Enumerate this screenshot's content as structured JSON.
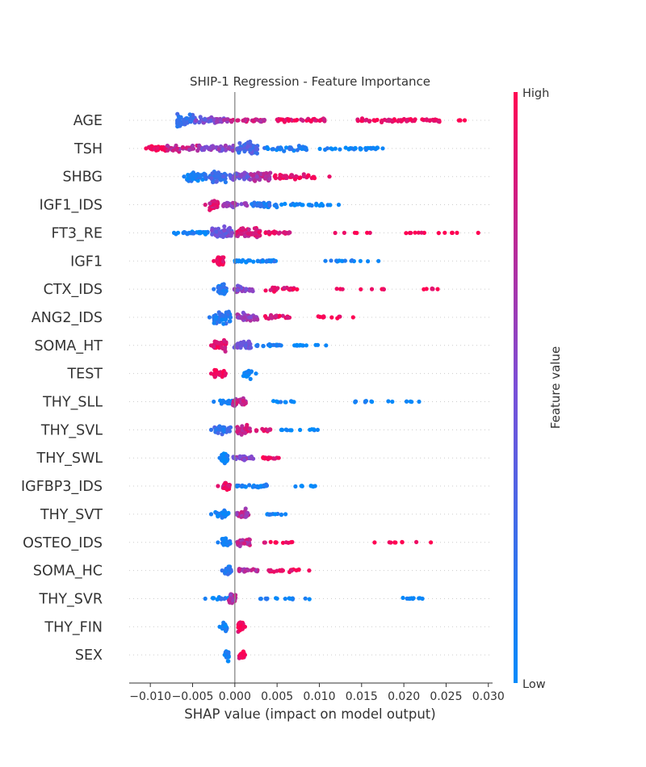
{
  "chart_data": {
    "type": "scatter",
    "subtype": "shap-beeswarm",
    "title": "SHIP-1 Regression - Feature Importance",
    "xlabel": "SHAP value (impact on model output)",
    "ylabel": "",
    "xlim": [
      -0.0125,
      0.0305
    ],
    "xticks": [
      -0.01,
      -0.005,
      0.0,
      0.005,
      0.01,
      0.015,
      0.02,
      0.025,
      0.03
    ],
    "xtick_labels": [
      "−0.010",
      "−0.005",
      "0.000",
      "0.005",
      "0.010",
      "0.015",
      "0.020",
      "0.025",
      "0.030"
    ],
    "zero_line": 0.0,
    "grid": "dotted horizontal guides per feature",
    "colorbar": {
      "label": "Feature value",
      "high_label": "High",
      "low_label": "Low",
      "colors": [
        "#008bfb",
        "#7a4fd8",
        "#ff0052"
      ],
      "placement": "right"
    },
    "features": [
      {
        "name": "AGE",
        "min": -0.0068,
        "max": 0.0272,
        "clusters": [
          {
            "x": -0.006,
            "w": 0.0013,
            "h": 0.95,
            "c": 0.22,
            "n": 60
          },
          {
            "x": -0.0035,
            "w": 0.0012,
            "h": 0.5,
            "c": 0.45,
            "n": 30
          },
          {
            "x": -0.0015,
            "w": 0.001,
            "h": 0.4,
            "c": 0.6,
            "n": 20
          },
          {
            "x": 0.0015,
            "w": 0.002,
            "h": 0.25,
            "c": 0.8,
            "n": 30
          },
          {
            "x": 0.008,
            "w": 0.003,
            "h": 0.25,
            "c": 0.92,
            "n": 40
          },
          {
            "x": 0.0195,
            "w": 0.005,
            "h": 0.25,
            "c": 0.95,
            "n": 60
          },
          {
            "x": 0.0265,
            "w": 0.0006,
            "h": 0.05,
            "c": 1.0,
            "n": 3
          },
          {
            "x": 0.0163,
            "w": 0.0003,
            "h": 0.05,
            "c": 1.0,
            "n": 2
          }
        ]
      },
      {
        "name": "TSH",
        "min": -0.0105,
        "max": 0.0175,
        "clusters": [
          {
            "x": -0.009,
            "w": 0.0012,
            "h": 0.45,
            "c": 0.97,
            "n": 40
          },
          {
            "x": -0.006,
            "w": 0.002,
            "h": 0.45,
            "c": 0.75,
            "n": 40
          },
          {
            "x": -0.002,
            "w": 0.002,
            "h": 0.45,
            "c": 0.55,
            "n": 40
          },
          {
            "x": 0.0015,
            "w": 0.0012,
            "h": 0.95,
            "c": 0.3,
            "n": 55
          },
          {
            "x": 0.006,
            "w": 0.0025,
            "h": 0.35,
            "c": 0.12,
            "n": 35
          },
          {
            "x": 0.0135,
            "w": 0.0035,
            "h": 0.2,
            "c": 0.05,
            "n": 35
          }
        ]
      },
      {
        "name": "SHBG",
        "min": -0.006,
        "max": 0.0112,
        "clusters": [
          {
            "x": -0.0045,
            "w": 0.0012,
            "h": 0.7,
            "c": 0.1,
            "n": 45
          },
          {
            "x": -0.002,
            "w": 0.001,
            "h": 0.85,
            "c": 0.25,
            "n": 45
          },
          {
            "x": 0.0005,
            "w": 0.0012,
            "h": 0.6,
            "c": 0.45,
            "n": 45
          },
          {
            "x": 0.003,
            "w": 0.0012,
            "h": 0.7,
            "c": 0.7,
            "n": 45
          },
          {
            "x": 0.007,
            "w": 0.0025,
            "h": 0.35,
            "c": 0.92,
            "n": 35
          }
        ]
      },
      {
        "name": "IGF1_IDS",
        "min": -0.0035,
        "max": 0.0123,
        "clusters": [
          {
            "x": -0.0025,
            "w": 0.0005,
            "h": 0.75,
            "c": 0.85,
            "n": 35
          },
          {
            "x": 0.0,
            "w": 0.0015,
            "h": 0.35,
            "c": 0.6,
            "n": 30
          },
          {
            "x": 0.0035,
            "w": 0.0015,
            "h": 0.35,
            "c": 0.15,
            "n": 30
          },
          {
            "x": 0.0085,
            "w": 0.003,
            "h": 0.15,
            "c": 0.04,
            "n": 25
          }
        ]
      },
      {
        "name": "FT3_RE",
        "min": -0.0072,
        "max": 0.0288,
        "clusters": [
          {
            "x": -0.005,
            "w": 0.002,
            "h": 0.2,
            "c": 0.05,
            "n": 30
          },
          {
            "x": -0.0015,
            "w": 0.0012,
            "h": 0.85,
            "c": 0.45,
            "n": 60
          },
          {
            "x": 0.0015,
            "w": 0.0015,
            "h": 0.8,
            "c": 0.85,
            "n": 60
          },
          {
            "x": 0.005,
            "w": 0.0015,
            "h": 0.25,
            "c": 0.9,
            "n": 20
          },
          {
            "x": 0.013,
            "w": 0.003,
            "h": 0.05,
            "c": 1.0,
            "n": 6
          },
          {
            "x": 0.024,
            "w": 0.004,
            "h": 0.05,
            "c": 1.0,
            "n": 12
          }
        ]
      },
      {
        "name": "IGF1",
        "min": -0.0025,
        "max": 0.017,
        "clusters": [
          {
            "x": -0.0017,
            "w": 0.0004,
            "h": 0.8,
            "c": 0.95,
            "n": 35
          },
          {
            "x": 0.0025,
            "w": 0.0025,
            "h": 0.2,
            "c": 0.08,
            "n": 35
          },
          {
            "x": 0.013,
            "w": 0.003,
            "h": 0.1,
            "c": 0.04,
            "n": 15
          }
        ]
      },
      {
        "name": "CTX_IDS",
        "min": -0.0025,
        "max": 0.024,
        "clusters": [
          {
            "x": -0.0015,
            "w": 0.0005,
            "h": 0.8,
            "c": 0.15,
            "n": 35
          },
          {
            "x": 0.001,
            "w": 0.0012,
            "h": 0.5,
            "c": 0.55,
            "n": 30
          },
          {
            "x": 0.0055,
            "w": 0.002,
            "h": 0.3,
            "c": 0.92,
            "n": 25
          },
          {
            "x": 0.015,
            "w": 0.003,
            "h": 0.05,
            "c": 1.0,
            "n": 8
          },
          {
            "x": 0.0228,
            "w": 0.0008,
            "h": 0.1,
            "c": 1.0,
            "n": 5
          }
        ]
      },
      {
        "name": "ANG2_IDS",
        "min": -0.003,
        "max": 0.014,
        "clusters": [
          {
            "x": -0.0015,
            "w": 0.001,
            "h": 0.9,
            "c": 0.15,
            "n": 50
          },
          {
            "x": 0.0015,
            "w": 0.0012,
            "h": 0.7,
            "c": 0.6,
            "n": 40
          },
          {
            "x": 0.005,
            "w": 0.0015,
            "h": 0.35,
            "c": 0.9,
            "n": 20
          },
          {
            "x": 0.0115,
            "w": 0.002,
            "h": 0.15,
            "c": 1.0,
            "n": 12
          }
        ]
      },
      {
        "name": "SOMA_HT",
        "min": -0.0028,
        "max": 0.0108,
        "clusters": [
          {
            "x": -0.0018,
            "w": 0.0008,
            "h": 0.8,
            "c": 0.9,
            "n": 40
          },
          {
            "x": 0.001,
            "w": 0.0012,
            "h": 0.6,
            "c": 0.45,
            "n": 35
          },
          {
            "x": 0.004,
            "w": 0.0015,
            "h": 0.15,
            "c": 0.08,
            "n": 20
          },
          {
            "x": 0.0085,
            "w": 0.0015,
            "h": 0.1,
            "c": 0.04,
            "n": 12
          }
        ]
      },
      {
        "name": "TEST",
        "min": -0.0028,
        "max": 0.0025,
        "clusters": [
          {
            "x": -0.0018,
            "w": 0.0008,
            "h": 0.55,
            "c": 0.92,
            "n": 35
          },
          {
            "x": 0.0015,
            "w": 0.0005,
            "h": 0.65,
            "c": 0.05,
            "n": 25
          }
        ]
      },
      {
        "name": "THY_SLL",
        "min": -0.0025,
        "max": 0.0218,
        "clusters": [
          {
            "x": -0.001,
            "w": 0.0008,
            "h": 0.35,
            "c": 0.1,
            "n": 20
          },
          {
            "x": 0.0005,
            "w": 0.0008,
            "h": 0.7,
            "c": 0.75,
            "n": 35
          },
          {
            "x": 0.0055,
            "w": 0.0015,
            "h": 0.1,
            "c": 0.05,
            "n": 10
          },
          {
            "x": 0.0175,
            "w": 0.0035,
            "h": 0.1,
            "c": 0.04,
            "n": 15
          }
        ]
      },
      {
        "name": "THY_SVL",
        "min": -0.0028,
        "max": 0.0098,
        "clusters": [
          {
            "x": -0.0015,
            "w": 0.001,
            "h": 0.6,
            "c": 0.2,
            "n": 35
          },
          {
            "x": 0.001,
            "w": 0.0008,
            "h": 0.7,
            "c": 0.8,
            "n": 35
          },
          {
            "x": 0.0035,
            "w": 0.001,
            "h": 0.2,
            "c": 0.9,
            "n": 12
          },
          {
            "x": 0.0075,
            "w": 0.002,
            "h": 0.1,
            "c": 0.05,
            "n": 12
          }
        ]
      },
      {
        "name": "THY_SWL",
        "min": -0.0018,
        "max": 0.0052,
        "clusters": [
          {
            "x": -0.0012,
            "w": 0.0004,
            "h": 0.75,
            "c": 0.1,
            "n": 30
          },
          {
            "x": 0.001,
            "w": 0.0012,
            "h": 0.35,
            "c": 0.55,
            "n": 25
          },
          {
            "x": 0.004,
            "w": 0.001,
            "h": 0.2,
            "c": 0.95,
            "n": 15
          }
        ]
      },
      {
        "name": "IGFBP3_IDS",
        "min": -0.002,
        "max": 0.0095,
        "clusters": [
          {
            "x": -0.001,
            "w": 0.0004,
            "h": 0.8,
            "c": 0.9,
            "n": 30
          },
          {
            "x": 0.002,
            "w": 0.0018,
            "h": 0.25,
            "c": 0.1,
            "n": 35
          },
          {
            "x": 0.0082,
            "w": 0.0012,
            "h": 0.1,
            "c": 0.04,
            "n": 8
          }
        ]
      },
      {
        "name": "THY_SVT",
        "min": -0.0028,
        "max": 0.006,
        "clusters": [
          {
            "x": -0.0015,
            "w": 0.0008,
            "h": 0.5,
            "c": 0.1,
            "n": 30
          },
          {
            "x": 0.001,
            "w": 0.0008,
            "h": 0.8,
            "c": 0.7,
            "n": 30
          },
          {
            "x": 0.0045,
            "w": 0.0012,
            "h": 0.1,
            "c": 0.05,
            "n": 10
          }
        ]
      },
      {
        "name": "OSTEO_IDS",
        "min": -0.002,
        "max": 0.0232,
        "clusters": [
          {
            "x": -0.001,
            "w": 0.0005,
            "h": 0.6,
            "c": 0.1,
            "n": 25
          },
          {
            "x": 0.001,
            "w": 0.0008,
            "h": 0.55,
            "c": 0.75,
            "n": 30
          },
          {
            "x": 0.005,
            "w": 0.002,
            "h": 0.1,
            "c": 0.95,
            "n": 12
          },
          {
            "x": 0.019,
            "w": 0.004,
            "h": 0.05,
            "c": 1.0,
            "n": 8
          }
        ]
      },
      {
        "name": "SOMA_HC",
        "min": -0.0015,
        "max": 0.0088,
        "clusters": [
          {
            "x": -0.0008,
            "w": 0.0004,
            "h": 0.8,
            "c": 0.2,
            "n": 30
          },
          {
            "x": 0.0015,
            "w": 0.0012,
            "h": 0.3,
            "c": 0.7,
            "n": 25
          },
          {
            "x": 0.006,
            "w": 0.002,
            "h": 0.25,
            "c": 0.95,
            "n": 20
          }
        ]
      },
      {
        "name": "THY_SVR",
        "min": -0.0035,
        "max": 0.0222,
        "clusters": [
          {
            "x": -0.0015,
            "w": 0.0012,
            "h": 0.2,
            "c": 0.1,
            "n": 15
          },
          {
            "x": -0.0003,
            "w": 0.0004,
            "h": 0.8,
            "c": 0.7,
            "n": 25
          },
          {
            "x": 0.006,
            "w": 0.003,
            "h": 0.1,
            "c": 0.05,
            "n": 15
          },
          {
            "x": 0.021,
            "w": 0.0012,
            "h": 0.15,
            "c": 0.04,
            "n": 10
          }
        ]
      },
      {
        "name": "THY_FIN",
        "min": -0.0018,
        "max": 0.0012,
        "clusters": [
          {
            "x": -0.0012,
            "w": 0.0003,
            "h": 0.6,
            "c": 0.05,
            "n": 25
          },
          {
            "x": 0.0007,
            "w": 0.0003,
            "h": 0.8,
            "c": 0.97,
            "n": 30
          }
        ]
      },
      {
        "name": "SEX",
        "min": -0.0012,
        "max": 0.0012,
        "clusters": [
          {
            "x": -0.0009,
            "w": 0.0002,
            "h": 0.8,
            "c": 0.05,
            "n": 25
          },
          {
            "x": 0.0008,
            "w": 0.0003,
            "h": 0.65,
            "c": 0.97,
            "n": 25
          }
        ]
      }
    ]
  }
}
